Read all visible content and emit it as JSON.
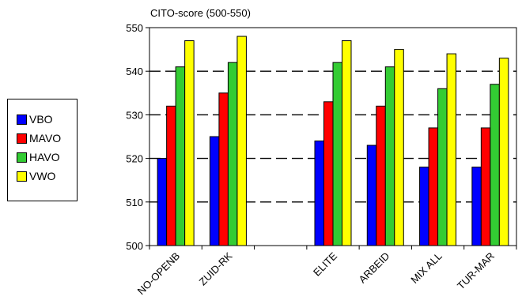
{
  "chart_data": {
    "type": "bar",
    "title": "CITO-score (500-550)",
    "xlabel": "",
    "ylabel": "",
    "ylim": [
      500,
      550
    ],
    "yticks": [
      500,
      510,
      520,
      530,
      540,
      550
    ],
    "grid": "horizontal dashed",
    "legend_position": "left",
    "categories": [
      "NO-OPENB",
      "ZUID-RK",
      "",
      "ELITE",
      "ARBEID",
      "MIX ALL",
      "TUR-MAR"
    ],
    "series": [
      {
        "name": "VBO",
        "color": "#0000ff",
        "values": [
          520,
          525,
          null,
          524,
          523,
          518,
          518
        ]
      },
      {
        "name": "MAVO",
        "color": "#ff0000",
        "values": [
          532,
          535,
          null,
          533,
          532,
          527,
          527
        ]
      },
      {
        "name": "HAVO",
        "color": "#33cc33",
        "values": [
          541,
          542,
          null,
          542,
          541,
          536,
          537
        ]
      },
      {
        "name": "VWO",
        "color": "#ffff00",
        "values": [
          547,
          548,
          null,
          547,
          545,
          544,
          543
        ]
      }
    ]
  }
}
